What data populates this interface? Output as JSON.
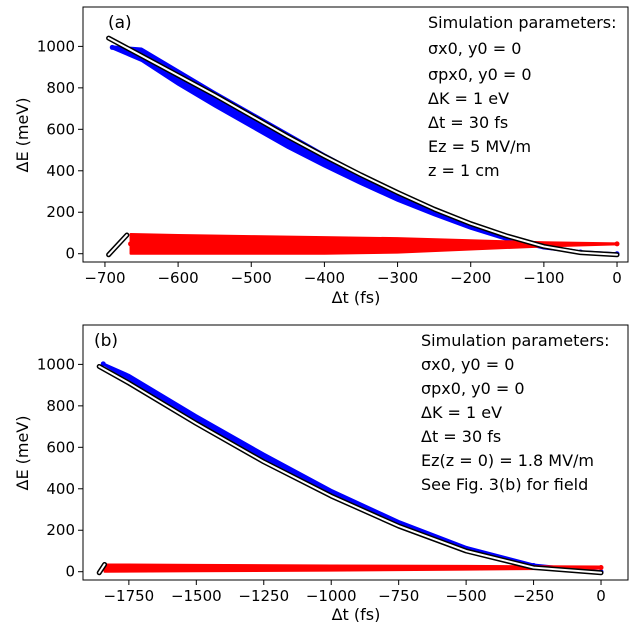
{
  "chart_data": [
    {
      "type": "scatter",
      "panel_label": "(a)",
      "xlabel": "Δt (fs)",
      "ylabel": "ΔE (meV)",
      "xlim": [
        -730,
        15
      ],
      "ylim": [
        -40,
        1190
      ],
      "xticks": [
        -700,
        -600,
        -500,
        -400,
        -300,
        -200,
        -100,
        0
      ],
      "xtick_labels": [
        "−700",
        "−600",
        "−500",
        "−400",
        "−300",
        "−200",
        "−100",
        "0"
      ],
      "yticks": [
        0,
        200,
        400,
        600,
        800,
        1000
      ],
      "ytick_labels": [
        "0",
        "200",
        "400",
        "600",
        "800",
        "1000"
      ],
      "annotation_lines": [
        "Simulation parameters:",
        "σx0, y0 = 0",
        "σpx0, y0 = 0",
        "ΔK = 1 eV",
        "Δt = 30 fs",
        "Ez = 5 MV/m",
        "z = 1 cm"
      ],
      "series": [
        {
          "color": "#0000ff",
          "kind": "band",
          "x": [
            -690,
            -650,
            -600,
            -550,
            -500,
            -450,
            -400,
            -350,
            -300,
            -250,
            -200,
            -150,
            -100,
            -50,
            0
          ],
          "y_low": [
            990,
            930,
            815,
            710,
            610,
            510,
            420,
            335,
            255,
            185,
            120,
            65,
            25,
            5,
            -2
          ],
          "y_high": [
            1000,
            990,
            885,
            780,
            680,
            580,
            480,
            385,
            295,
            215,
            145,
            85,
            40,
            12,
            2
          ]
        },
        {
          "color": "#ff0000",
          "kind": "band",
          "x": [
            -665,
            -600,
            -500,
            -400,
            -300,
            -200,
            -100,
            0
          ],
          "y_low": [
            0,
            0,
            0,
            0,
            5,
            20,
            35,
            45
          ],
          "y_high": [
            95,
            90,
            85,
            80,
            75,
            65,
            55,
            50
          ]
        },
        {
          "color": "#000000",
          "kind": "reference-curve",
          "x": [
            -695,
            -650,
            -600,
            -550,
            -500,
            -450,
            -400,
            -350,
            -300,
            -250,
            -200,
            -150,
            -100,
            -50,
            0
          ],
          "y": [
            1040,
            955,
            860,
            765,
            665,
            565,
            470,
            380,
            295,
            215,
            145,
            85,
            35,
            5,
            -5
          ]
        },
        {
          "color": "#000000",
          "kind": "reference-curve",
          "x": [
            -695,
            -670
          ],
          "y": [
            -5,
            90
          ]
        }
      ]
    },
    {
      "type": "scatter",
      "panel_label": "(b)",
      "xlabel": "Δt (fs)",
      "ylabel": "ΔE (meV)",
      "xlim": [
        -1920,
        100
      ],
      "ylim": [
        -40,
        1190
      ],
      "xticks": [
        -1750,
        -1500,
        -1250,
        -1000,
        -750,
        -500,
        -250,
        0
      ],
      "xtick_labels": [
        "−1750",
        "−1500",
        "−1250",
        "−1000",
        "−750",
        "−500",
        "−250",
        "0"
      ],
      "yticks": [
        0,
        200,
        400,
        600,
        800,
        1000
      ],
      "ytick_labels": [
        "0",
        "200",
        "400",
        "600",
        "800",
        "1000"
      ],
      "annotation_lines": [
        "Simulation parameters:",
        "σx0, y0 = 0",
        "σpx0, y0 = 0",
        "ΔK = 1 eV",
        "Δt = 30 fs",
        "Ez(z = 0) = 1.8 MV/m",
        "See Fig. 3(b) for field"
      ],
      "series": [
        {
          "color": "#0000ff",
          "kind": "band",
          "x": [
            -1845,
            -1750,
            -1500,
            -1250,
            -1000,
            -750,
            -500,
            -250,
            0
          ],
          "y_low": [
            1000,
            925,
            730,
            545,
            375,
            225,
            105,
            25,
            -3
          ],
          "y_high": [
            1005,
            950,
            755,
            570,
            395,
            245,
            120,
            35,
            2
          ]
        },
        {
          "color": "#ff0000",
          "kind": "band",
          "x": [
            -1840,
            -1500,
            -1000,
            -500,
            0
          ],
          "y_low": [
            0,
            2,
            5,
            10,
            15
          ],
          "y_high": [
            35,
            33,
            30,
            28,
            25
          ]
        },
        {
          "color": "#000000",
          "kind": "reference-curve",
          "x": [
            -1860,
            -1750,
            -1500,
            -1250,
            -1000,
            -750,
            -500,
            -250,
            0
          ],
          "y": [
            990,
            910,
            715,
            530,
            365,
            220,
            100,
            20,
            -5
          ]
        },
        {
          "color": "#000000",
          "kind": "reference-curve",
          "x": [
            -1860,
            -1840
          ],
          "y": [
            -5,
            35
          ]
        }
      ]
    }
  ]
}
